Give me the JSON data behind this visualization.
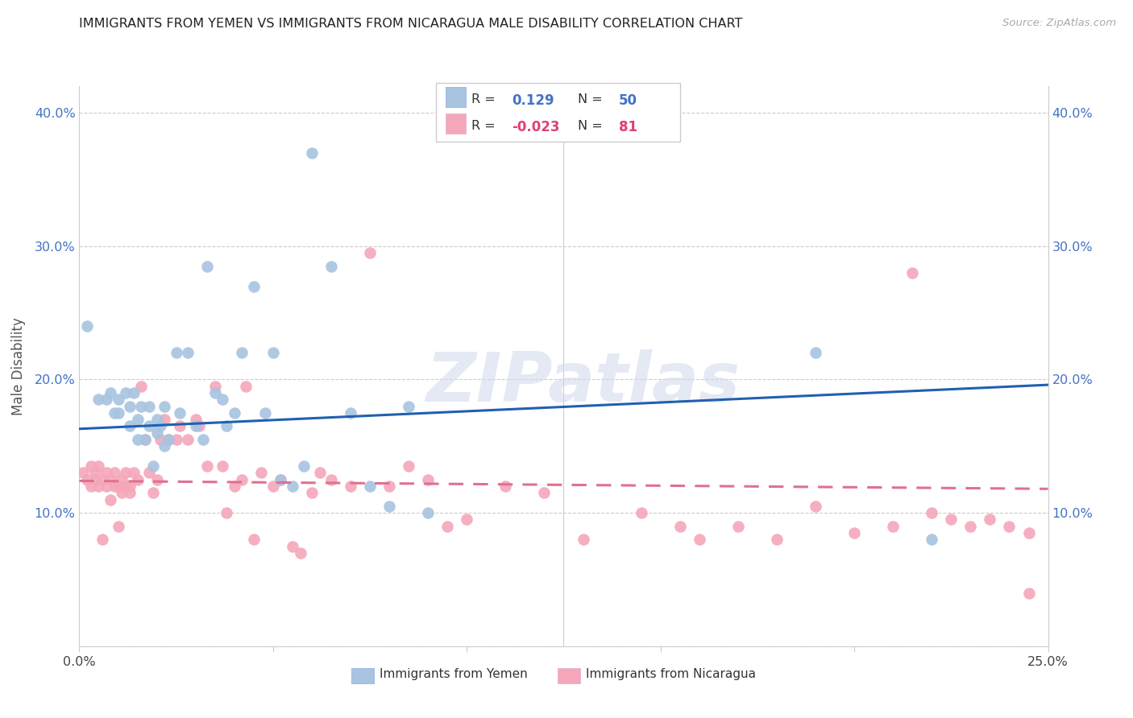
{
  "title": "IMMIGRANTS FROM YEMEN VS IMMIGRANTS FROM NICARAGUA MALE DISABILITY CORRELATION CHART",
  "source": "Source: ZipAtlas.com",
  "ylabel": "Male Disability",
  "xlim": [
    0.0,
    0.25
  ],
  "ylim": [
    0.0,
    0.42
  ],
  "yemen_R": "0.129",
  "yemen_N": "50",
  "nicaragua_R": "-0.023",
  "nicaragua_N": "81",
  "yemen_color": "#a8c4e0",
  "nicaragua_color": "#f4a7b9",
  "yemen_line_color": "#2060b0",
  "nicaragua_line_color": "#e07090",
  "watermark": "ZIPatlas",
  "yemen_intercept": 0.163,
  "yemen_slope": 0.132,
  "nicaragua_intercept": 0.124,
  "nicaragua_slope": -0.024,
  "yemen_x": [
    0.002,
    0.005,
    0.007,
    0.008,
    0.009,
    0.01,
    0.01,
    0.012,
    0.013,
    0.013,
    0.014,
    0.015,
    0.015,
    0.016,
    0.017,
    0.018,
    0.018,
    0.019,
    0.02,
    0.02,
    0.021,
    0.022,
    0.022,
    0.023,
    0.025,
    0.026,
    0.028,
    0.03,
    0.032,
    0.033,
    0.035,
    0.037,
    0.038,
    0.04,
    0.042,
    0.045,
    0.048,
    0.05,
    0.052,
    0.055,
    0.058,
    0.06,
    0.065,
    0.07,
    0.075,
    0.08,
    0.085,
    0.09,
    0.19,
    0.22
  ],
  "yemen_y": [
    0.24,
    0.185,
    0.185,
    0.19,
    0.175,
    0.175,
    0.185,
    0.19,
    0.165,
    0.18,
    0.19,
    0.155,
    0.17,
    0.18,
    0.155,
    0.165,
    0.18,
    0.135,
    0.16,
    0.17,
    0.165,
    0.15,
    0.18,
    0.155,
    0.22,
    0.175,
    0.22,
    0.165,
    0.155,
    0.285,
    0.19,
    0.185,
    0.165,
    0.175,
    0.22,
    0.27,
    0.175,
    0.22,
    0.125,
    0.12,
    0.135,
    0.37,
    0.285,
    0.175,
    0.12,
    0.105,
    0.18,
    0.1,
    0.22,
    0.08
  ],
  "nicaragua_x": [
    0.001,
    0.002,
    0.003,
    0.003,
    0.004,
    0.004,
    0.005,
    0.005,
    0.006,
    0.006,
    0.007,
    0.007,
    0.008,
    0.008,
    0.009,
    0.009,
    0.01,
    0.01,
    0.011,
    0.011,
    0.012,
    0.012,
    0.013,
    0.013,
    0.014,
    0.015,
    0.016,
    0.017,
    0.018,
    0.019,
    0.02,
    0.021,
    0.022,
    0.023,
    0.025,
    0.026,
    0.028,
    0.03,
    0.031,
    0.033,
    0.035,
    0.037,
    0.038,
    0.04,
    0.042,
    0.043,
    0.045,
    0.047,
    0.05,
    0.052,
    0.055,
    0.057,
    0.06,
    0.062,
    0.065,
    0.07,
    0.075,
    0.08,
    0.085,
    0.09,
    0.095,
    0.1,
    0.11,
    0.12,
    0.13,
    0.145,
    0.155,
    0.16,
    0.17,
    0.18,
    0.19,
    0.2,
    0.21,
    0.215,
    0.22,
    0.225,
    0.23,
    0.235,
    0.24,
    0.245,
    0.245
  ],
  "nicaragua_y": [
    0.13,
    0.125,
    0.12,
    0.135,
    0.125,
    0.13,
    0.12,
    0.135,
    0.125,
    0.08,
    0.13,
    0.12,
    0.125,
    0.11,
    0.12,
    0.13,
    0.12,
    0.09,
    0.125,
    0.115,
    0.12,
    0.13,
    0.12,
    0.115,
    0.13,
    0.125,
    0.195,
    0.155,
    0.13,
    0.115,
    0.125,
    0.155,
    0.17,
    0.155,
    0.155,
    0.165,
    0.155,
    0.17,
    0.165,
    0.135,
    0.195,
    0.135,
    0.1,
    0.12,
    0.125,
    0.195,
    0.08,
    0.13,
    0.12,
    0.125,
    0.075,
    0.07,
    0.115,
    0.13,
    0.125,
    0.12,
    0.295,
    0.12,
    0.135,
    0.125,
    0.09,
    0.095,
    0.12,
    0.115,
    0.08,
    0.1,
    0.09,
    0.08,
    0.09,
    0.08,
    0.105,
    0.085,
    0.09,
    0.28,
    0.1,
    0.095,
    0.09,
    0.095,
    0.09,
    0.085,
    0.04
  ]
}
